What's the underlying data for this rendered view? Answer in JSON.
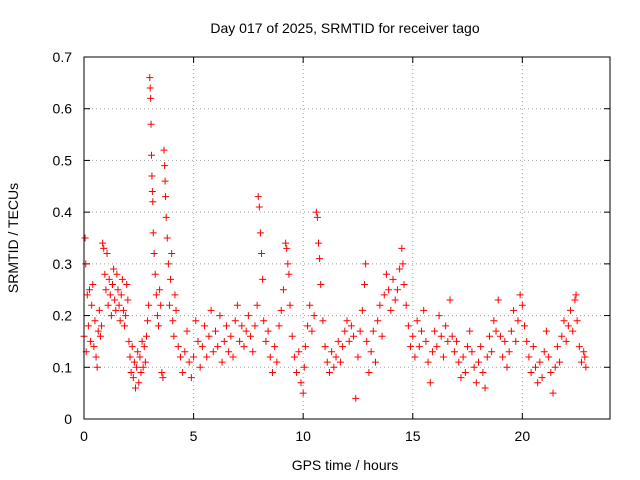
{
  "chart_data": {
    "type": "scatter",
    "title": "Day 017 of 2025, SRMTID for receiver tago",
    "xlabel": "GPS time / hours",
    "ylabel": "SRMTID / TECUs",
    "xlim": [
      0,
      24
    ],
    "ylim": [
      0,
      0.7
    ],
    "xticks": [
      0,
      5,
      10,
      15,
      20
    ],
    "xtick_labels": [
      "0",
      "5",
      "10",
      "15",
      "20"
    ],
    "yticks": [
      0,
      0.1,
      0.2,
      0.3,
      0.4,
      0.5,
      0.6,
      0.7
    ],
    "ytick_labels": [
      "0",
      "0.1",
      "0.2",
      "0.3",
      "0.4",
      "0.5",
      "0.6",
      "0.7"
    ],
    "grid": true,
    "marker": "plus",
    "series": [
      {
        "name": "SRMTID",
        "color": "#ff0000",
        "points": [
          [
            0.0,
            0.16
          ],
          [
            0.05,
            0.35
          ],
          [
            0.08,
            0.3
          ],
          [
            0.1,
            0.13
          ],
          [
            0.15,
            0.24
          ],
          [
            0.2,
            0.18
          ],
          [
            0.25,
            0.25
          ],
          [
            0.3,
            0.15
          ],
          [
            0.35,
            0.22
          ],
          [
            0.4,
            0.26
          ],
          [
            0.45,
            0.14
          ],
          [
            0.5,
            0.19
          ],
          [
            0.55,
            0.12
          ],
          [
            0.6,
            0.1
          ],
          [
            0.65,
            0.17
          ],
          [
            0.7,
            0.21
          ],
          [
            0.75,
            0.16
          ],
          [
            0.8,
            0.18
          ],
          [
            0.85,
            0.34
          ],
          [
            0.9,
            0.33
          ],
          [
            0.95,
            0.28
          ],
          [
            1.0,
            0.25
          ],
          [
            1.05,
            0.32
          ],
          [
            1.1,
            0.22
          ],
          [
            1.15,
            0.27
          ],
          [
            1.2,
            0.24
          ],
          [
            1.25,
            0.2
          ],
          [
            1.3,
            0.26
          ],
          [
            1.35,
            0.29
          ],
          [
            1.4,
            0.23
          ],
          [
            1.45,
            0.21
          ],
          [
            1.5,
            0.28
          ],
          [
            1.55,
            0.25
          ],
          [
            1.6,
            0.22
          ],
          [
            1.65,
            0.19
          ],
          [
            1.7,
            0.24
          ],
          [
            1.75,
            0.27
          ],
          [
            1.8,
            0.21
          ],
          [
            1.85,
            0.18
          ],
          [
            1.9,
            0.2
          ],
          [
            1.95,
            0.26
          ],
          [
            2.0,
            0.23
          ],
          [
            2.05,
            0.15
          ],
          [
            2.1,
            0.12
          ],
          [
            2.15,
            0.09
          ],
          [
            2.2,
            0.14
          ],
          [
            2.25,
            0.08
          ],
          [
            2.3,
            0.11
          ],
          [
            2.35,
            0.06
          ],
          [
            2.4,
            0.1
          ],
          [
            2.45,
            0.13
          ],
          [
            2.5,
            0.07
          ],
          [
            2.55,
            0.12
          ],
          [
            2.6,
            0.09
          ],
          [
            2.65,
            0.15
          ],
          [
            2.7,
            0.1
          ],
          [
            2.75,
            0.14
          ],
          [
            2.8,
            0.11
          ],
          [
            2.85,
            0.16
          ],
          [
            2.9,
            0.19
          ],
          [
            2.95,
            0.22
          ],
          [
            3.0,
            0.66
          ],
          [
            3.02,
            0.64
          ],
          [
            3.04,
            0.62
          ],
          [
            3.06,
            0.57
          ],
          [
            3.08,
            0.51
          ],
          [
            3.1,
            0.47
          ],
          [
            3.12,
            0.44
          ],
          [
            3.14,
            0.42
          ],
          [
            3.16,
            0.36
          ],
          [
            3.2,
            0.32
          ],
          [
            3.25,
            0.28
          ],
          [
            3.3,
            0.24
          ],
          [
            3.35,
            0.2
          ],
          [
            3.4,
            0.18
          ],
          [
            3.45,
            0.25
          ],
          [
            3.5,
            0.22
          ],
          [
            3.55,
            0.09
          ],
          [
            3.6,
            0.08
          ],
          [
            3.65,
            0.52
          ],
          [
            3.68,
            0.49
          ],
          [
            3.7,
            0.46
          ],
          [
            3.72,
            0.43
          ],
          [
            3.75,
            0.39
          ],
          [
            3.8,
            0.35
          ],
          [
            3.85,
            0.3
          ],
          [
            3.9,
            0.22
          ],
          [
            3.95,
            0.27
          ],
          [
            4.0,
            0.32
          ],
          [
            4.05,
            0.19
          ],
          [
            4.1,
            0.16
          ],
          [
            4.15,
            0.24
          ],
          [
            4.2,
            0.21
          ],
          [
            4.3,
            0.14
          ],
          [
            4.4,
            0.12
          ],
          [
            4.5,
            0.09
          ],
          [
            4.6,
            0.13
          ],
          [
            4.7,
            0.17
          ],
          [
            4.8,
            0.11
          ],
          [
            4.9,
            0.08
          ],
          [
            5.0,
            0.12
          ],
          [
            5.1,
            0.19
          ],
          [
            5.2,
            0.15
          ],
          [
            5.3,
            0.1
          ],
          [
            5.4,
            0.14
          ],
          [
            5.5,
            0.18
          ],
          [
            5.6,
            0.12
          ],
          [
            5.7,
            0.16
          ],
          [
            5.8,
            0.21
          ],
          [
            5.9,
            0.13
          ],
          [
            6.0,
            0.17
          ],
          [
            6.1,
            0.14
          ],
          [
            6.2,
            0.2
          ],
          [
            6.3,
            0.11
          ],
          [
            6.4,
            0.15
          ],
          [
            6.5,
            0.18
          ],
          [
            6.6,
            0.13
          ],
          [
            6.7,
            0.16
          ],
          [
            6.8,
            0.12
          ],
          [
            6.9,
            0.19
          ],
          [
            7.0,
            0.22
          ],
          [
            7.1,
            0.15
          ],
          [
            7.2,
            0.18
          ],
          [
            7.3,
            0.14
          ],
          [
            7.4,
            0.17
          ],
          [
            7.5,
            0.2
          ],
          [
            7.6,
            0.16
          ],
          [
            7.7,
            0.13
          ],
          [
            7.8,
            0.18
          ],
          [
            7.9,
            0.22
          ],
          [
            7.95,
            0.43
          ],
          [
            8.0,
            0.41
          ],
          [
            8.05,
            0.36
          ],
          [
            8.1,
            0.32
          ],
          [
            8.15,
            0.27
          ],
          [
            8.2,
            0.19
          ],
          [
            8.3,
            0.15
          ],
          [
            8.4,
            0.17
          ],
          [
            8.5,
            0.12
          ],
          [
            8.6,
            0.09
          ],
          [
            8.7,
            0.14
          ],
          [
            8.8,
            0.11
          ],
          [
            8.9,
            0.18
          ],
          [
            9.0,
            0.21
          ],
          [
            9.1,
            0.25
          ],
          [
            9.2,
            0.34
          ],
          [
            9.25,
            0.33
          ],
          [
            9.3,
            0.3
          ],
          [
            9.35,
            0.28
          ],
          [
            9.4,
            0.22
          ],
          [
            9.5,
            0.16
          ],
          [
            9.6,
            0.12
          ],
          [
            9.7,
            0.09
          ],
          [
            9.8,
            0.13
          ],
          [
            9.9,
            0.07
          ],
          [
            10.0,
            0.05
          ],
          [
            10.05,
            0.1
          ],
          [
            10.1,
            0.14
          ],
          [
            10.2,
            0.18
          ],
          [
            10.3,
            0.22
          ],
          [
            10.4,
            0.17
          ],
          [
            10.5,
            0.2
          ],
          [
            10.6,
            0.4
          ],
          [
            10.65,
            0.39
          ],
          [
            10.7,
            0.34
          ],
          [
            10.75,
            0.31
          ],
          [
            10.8,
            0.26
          ],
          [
            10.9,
            0.19
          ],
          [
            11.0,
            0.14
          ],
          [
            11.1,
            0.11
          ],
          [
            11.2,
            0.09
          ],
          [
            11.3,
            0.13
          ],
          [
            11.4,
            0.1
          ],
          [
            11.5,
            0.12
          ],
          [
            11.6,
            0.15
          ],
          [
            11.7,
            0.11
          ],
          [
            11.8,
            0.14
          ],
          [
            11.9,
            0.17
          ],
          [
            12.0,
            0.19
          ],
          [
            12.1,
            0.15
          ],
          [
            12.2,
            0.18
          ],
          [
            12.3,
            0.16
          ],
          [
            12.4,
            0.04
          ],
          [
            12.5,
            0.12
          ],
          [
            12.6,
            0.17
          ],
          [
            12.7,
            0.21
          ],
          [
            12.8,
            0.26
          ],
          [
            12.85,
            0.3
          ],
          [
            12.9,
            0.15
          ],
          [
            13.0,
            0.09
          ],
          [
            13.1,
            0.13
          ],
          [
            13.2,
            0.17
          ],
          [
            13.3,
            0.11
          ],
          [
            13.4,
            0.19
          ],
          [
            13.5,
            0.22
          ],
          [
            13.6,
            0.16
          ],
          [
            13.7,
            0.24
          ],
          [
            13.8,
            0.28
          ],
          [
            13.9,
            0.25
          ],
          [
            14.0,
            0.21
          ],
          [
            14.1,
            0.27
          ],
          [
            14.2,
            0.23
          ],
          [
            14.3,
            0.25
          ],
          [
            14.4,
            0.29
          ],
          [
            14.5,
            0.33
          ],
          [
            14.55,
            0.3
          ],
          [
            14.6,
            0.26
          ],
          [
            14.7,
            0.22
          ],
          [
            14.8,
            0.18
          ],
          [
            14.9,
            0.14
          ],
          [
            15.0,
            0.16
          ],
          [
            15.1,
            0.12
          ],
          [
            15.2,
            0.19
          ],
          [
            15.3,
            0.14
          ],
          [
            15.4,
            0.17
          ],
          [
            15.5,
            0.21
          ],
          [
            15.6,
            0.15
          ],
          [
            15.7,
            0.11
          ],
          [
            15.8,
            0.07
          ],
          [
            15.9,
            0.13
          ],
          [
            16.0,
            0.17
          ],
          [
            16.1,
            0.14
          ],
          [
            16.2,
            0.2
          ],
          [
            16.3,
            0.16
          ],
          [
            16.4,
            0.12
          ],
          [
            16.5,
            0.18
          ],
          [
            16.6,
            0.15
          ],
          [
            16.7,
            0.23
          ],
          [
            16.8,
            0.16
          ],
          [
            16.9,
            0.13
          ],
          [
            17.0,
            0.15
          ],
          [
            17.1,
            0.11
          ],
          [
            17.2,
            0.08
          ],
          [
            17.3,
            0.12
          ],
          [
            17.4,
            0.09
          ],
          [
            17.5,
            0.14
          ],
          [
            17.6,
            0.17
          ],
          [
            17.7,
            0.13
          ],
          [
            17.8,
            0.1
          ],
          [
            17.9,
            0.07
          ],
          [
            18.0,
            0.11
          ],
          [
            18.1,
            0.14
          ],
          [
            18.2,
            0.09
          ],
          [
            18.3,
            0.06
          ],
          [
            18.4,
            0.12
          ],
          [
            18.5,
            0.16
          ],
          [
            18.6,
            0.13
          ],
          [
            18.7,
            0.19
          ],
          [
            18.8,
            0.17
          ],
          [
            18.9,
            0.23
          ],
          [
            19.0,
            0.16
          ],
          [
            19.1,
            0.12
          ],
          [
            19.2,
            0.15
          ],
          [
            19.3,
            0.1
          ],
          [
            19.4,
            0.13
          ],
          [
            19.5,
            0.17
          ],
          [
            19.6,
            0.21
          ],
          [
            19.7,
            0.15
          ],
          [
            19.8,
            0.19
          ],
          [
            19.9,
            0.24
          ],
          [
            20.0,
            0.22
          ],
          [
            20.1,
            0.18
          ],
          [
            20.2,
            0.15
          ],
          [
            20.3,
            0.12
          ],
          [
            20.4,
            0.09
          ],
          [
            20.5,
            0.14
          ],
          [
            20.6,
            0.1
          ],
          [
            20.7,
            0.07
          ],
          [
            20.8,
            0.11
          ],
          [
            20.9,
            0.08
          ],
          [
            21.0,
            0.13
          ],
          [
            21.1,
            0.17
          ],
          [
            21.2,
            0.12
          ],
          [
            21.3,
            0.09
          ],
          [
            21.4,
            0.05
          ],
          [
            21.5,
            0.1
          ],
          [
            21.6,
            0.14
          ],
          [
            21.7,
            0.11
          ],
          [
            21.8,
            0.16
          ],
          [
            21.9,
            0.19
          ],
          [
            22.0,
            0.15
          ],
          [
            22.1,
            0.18
          ],
          [
            22.2,
            0.21
          ],
          [
            22.3,
            0.17
          ],
          [
            22.4,
            0.23
          ],
          [
            22.45,
            0.24
          ],
          [
            22.5,
            0.19
          ],
          [
            22.6,
            0.14
          ],
          [
            22.7,
            0.11
          ],
          [
            22.8,
            0.13
          ],
          [
            22.85,
            0.12
          ],
          [
            22.9,
            0.1
          ]
        ]
      }
    ]
  }
}
